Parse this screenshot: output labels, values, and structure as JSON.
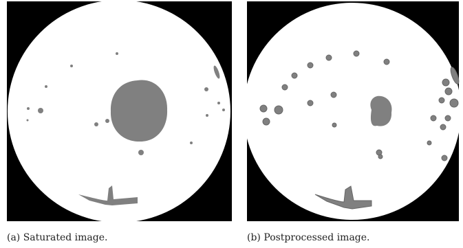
{
  "figures": [
    {
      "caption": "(a) Saturated image."
    },
    {
      "caption": "(b) Postprocessed image."
    }
  ]
}
